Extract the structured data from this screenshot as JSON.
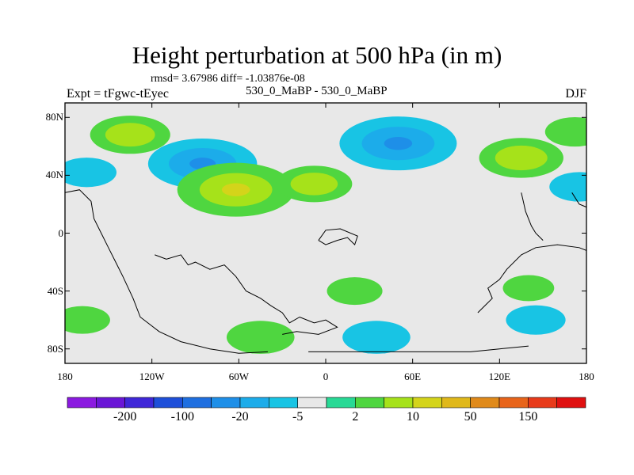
{
  "title": "Height perturbation at 500 hPa (in m)",
  "stats_line": "rmsd= 3.67986 diff= -1.03876e-08",
  "center_label": "530_0_MaBP - 530_0_MaBP",
  "left_label": "Expt = tFgwc-tEyec",
  "right_label": "DJF",
  "chart_data": {
    "type": "heatmap",
    "projection": "cylindrical equidistant",
    "xlim": [
      -180,
      180
    ],
    "ylim": [
      -90,
      90
    ],
    "x_ticks": [
      {
        "value": -180,
        "label": "180"
      },
      {
        "value": -120,
        "label": "120W"
      },
      {
        "value": -60,
        "label": "60W"
      },
      {
        "value": 0,
        "label": "0"
      },
      {
        "value": 60,
        "label": "60E"
      },
      {
        "value": 120,
        "label": "120E"
      },
      {
        "value": 180,
        "label": "180"
      }
    ],
    "y_ticks": [
      {
        "value": 80,
        "label": "80N"
      },
      {
        "value": 40,
        "label": "40N"
      },
      {
        "value": 0,
        "label": "0"
      },
      {
        "value": -40,
        "label": "40S"
      },
      {
        "value": -80,
        "label": "80S"
      }
    ],
    "colorbar": {
      "colors": [
        "#8b1ae0",
        "#6a16d6",
        "#3f27d8",
        "#1e4fd9",
        "#1f6fe0",
        "#1e8fe8",
        "#1cacea",
        "#18c4e4",
        "#e8e8e8",
        "#28d995",
        "#4fd640",
        "#a6e21a",
        "#d4d41a",
        "#e0b81a",
        "#e08a1a",
        "#e8641a",
        "#e83a1a",
        "#e01010"
      ],
      "labels": [
        "-200",
        "-100",
        "-20",
        "-5",
        "2",
        "10",
        "50",
        "150"
      ]
    },
    "anomalies": [
      {
        "lon": -135,
        "lat": 68,
        "value": 11
      },
      {
        "lon": -85,
        "lat": 48,
        "value": -18
      },
      {
        "lon": -62,
        "lat": 30,
        "value": 20
      },
      {
        "lon": -8,
        "lat": 34,
        "value": 10
      },
      {
        "lon": 50,
        "lat": 62,
        "value": -20
      },
      {
        "lon": 135,
        "lat": 52,
        "value": 12
      },
      {
        "lon": 172,
        "lat": 70,
        "value": 6
      },
      {
        "lon": -165,
        "lat": 42,
        "value": -6
      },
      {
        "lon": 175,
        "lat": 32,
        "value": -6
      },
      {
        "lon": -45,
        "lat": -72,
        "value": 8
      },
      {
        "lon": 35,
        "lat": -72,
        "value": -8
      },
      {
        "lon": 145,
        "lat": -60,
        "value": -6
      },
      {
        "lon": 140,
        "lat": -38,
        "value": 4
      },
      {
        "lon": 20,
        "lat": -40,
        "value": 5
      },
      {
        "lon": -168,
        "lat": -60,
        "value": 5
      }
    ]
  }
}
